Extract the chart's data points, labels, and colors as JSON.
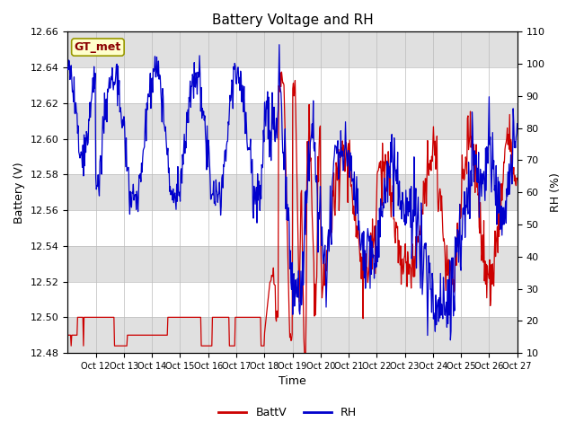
{
  "title": "Battery Voltage and RH",
  "xlabel": "Time",
  "ylabel_left": "Battery (V)",
  "ylabel_right": "RH (%)",
  "left_ylim": [
    12.48,
    12.66
  ],
  "right_ylim": [
    10,
    110
  ],
  "left_yticks": [
    12.48,
    12.5,
    12.52,
    12.54,
    12.56,
    12.58,
    12.6,
    12.62,
    12.64,
    12.66
  ],
  "right_yticks": [
    10,
    20,
    30,
    40,
    50,
    60,
    70,
    80,
    90,
    100,
    110
  ],
  "battv_color": "#cc0000",
  "rh_color": "#0000cc",
  "background_stripe_color": "#e0e0e0",
  "legend_label_battv": "BattV",
  "legend_label_rh": "RH",
  "station_label": "GT_met",
  "station_label_color": "#8b0000",
  "station_box_color": "#ffffcc",
  "station_box_edge_color": "#999900",
  "tick_dates": [
    "Oct 12",
    "Oct 13",
    "Oct 14",
    "Oct 15",
    "Oct 16",
    "Oct 17",
    "Oct 18",
    "Oct 19",
    "Oct 20",
    "Oct 21",
    "Oct 22",
    "Oct 23",
    "Oct 24",
    "Oct 25",
    "Oct 26",
    "Oct 27"
  ]
}
